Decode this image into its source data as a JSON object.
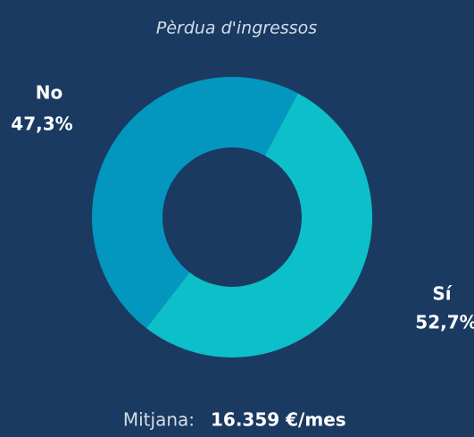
{
  "chart_data": {
    "type": "donut",
    "title": "Pèrdua d'ingressos",
    "categories": [
      "Sí",
      "No"
    ],
    "values": [
      52.7,
      47.3
    ],
    "value_labels": [
      "52,7%",
      "47,3%"
    ],
    "colors": [
      "#0cbfc9",
      "#0397bf"
    ],
    "footer_label": "Mitjana:",
    "footer_value": "16.359 €/mes"
  }
}
